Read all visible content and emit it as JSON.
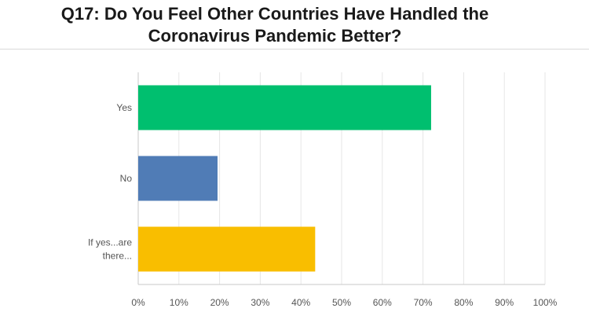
{
  "chart_data": {
    "type": "bar",
    "orientation": "horizontal",
    "title_lines": [
      "Q17: Do You Feel Other Countries Have Handled the",
      "Coronavirus Pandemic Better?"
    ],
    "categories": [
      {
        "lines": [
          "Yes"
        ]
      },
      {
        "lines": [
          "No"
        ]
      },
      {
        "lines": [
          "If yes...are",
          "there..."
        ]
      }
    ],
    "values": [
      72,
      19.5,
      43.5
    ],
    "colors": [
      "#00bf6f",
      "#507cb6",
      "#f9be00"
    ],
    "xlim": [
      0,
      100
    ],
    "x_ticks": [
      "0%",
      "10%",
      "20%",
      "30%",
      "40%",
      "50%",
      "60%",
      "70%",
      "80%",
      "90%",
      "100%"
    ],
    "grid": true,
    "legend": "none"
  }
}
